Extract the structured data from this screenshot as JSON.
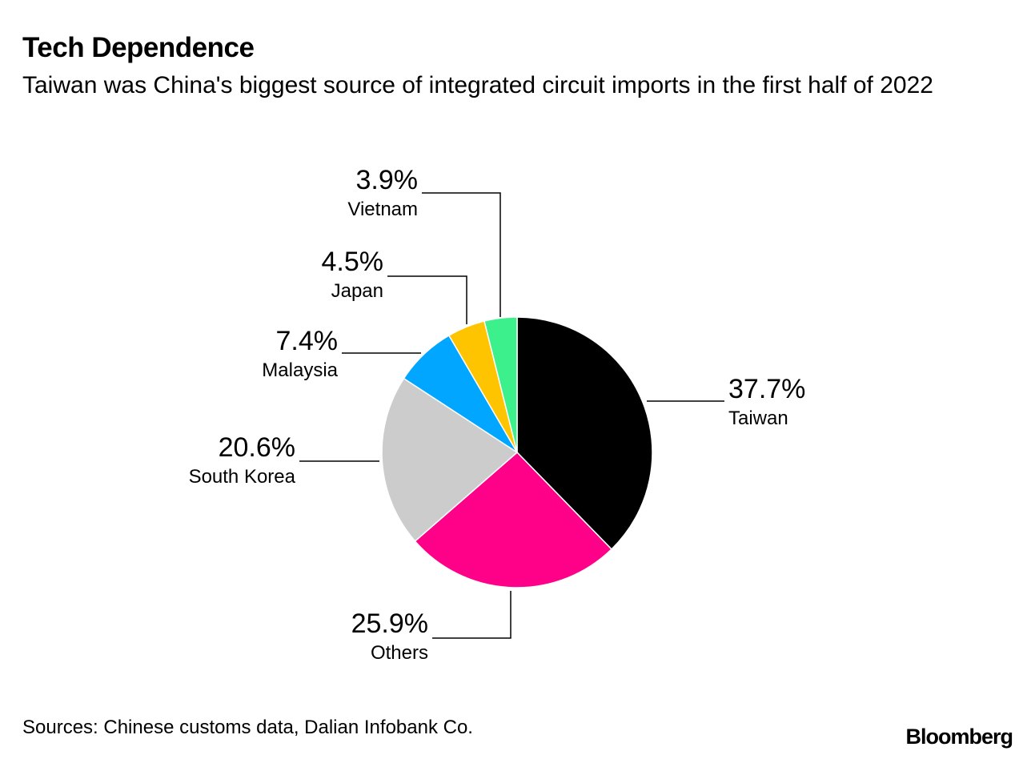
{
  "chart_data": {
    "type": "pie",
    "title": "Tech Dependence",
    "subtitle": "Taiwan was China's biggest source of integrated circuit imports in the first half of 2022",
    "unit": "%",
    "slices": [
      {
        "label": "Taiwan",
        "value": 37.7,
        "display": "37.7%",
        "color": "#000000"
      },
      {
        "label": "Others",
        "value": 25.9,
        "display": "25.9%",
        "color": "#ff0088"
      },
      {
        "label": "South Korea",
        "value": 20.6,
        "display": "20.6%",
        "color": "#cccccc"
      },
      {
        "label": "Malaysia",
        "value": 7.4,
        "display": "7.4%",
        "color": "#00a6ff"
      },
      {
        "label": "Japan",
        "value": 4.5,
        "display": "4.5%",
        "color": "#ffc400"
      },
      {
        "label": "Vietnam",
        "value": 3.9,
        "display": "3.9%",
        "color": "#3cf08c"
      }
    ],
    "source": "Sources: Chinese customs data, Dalian Infobank Co."
  },
  "brand": "Bloomberg"
}
